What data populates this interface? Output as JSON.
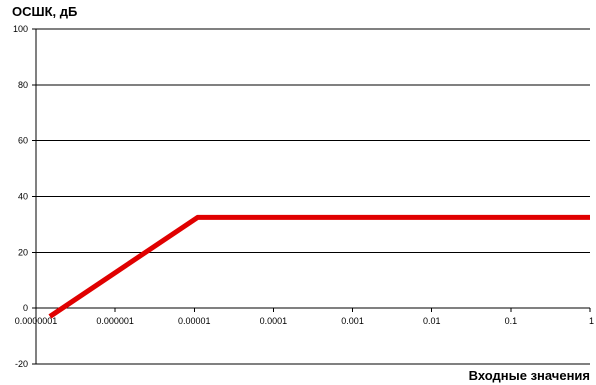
{
  "chart_data": {
    "type": "line",
    "ylabel": "ОСШК, дБ",
    "xlabel": "Входные значения",
    "x_scale": "log",
    "xlim": [
      1e-07,
      1
    ],
    "ylim": [
      -20,
      100
    ],
    "y_ticks": [
      -20,
      0,
      20,
      40,
      60,
      80,
      100
    ],
    "y_tick_labels": [
      "-20",
      "0",
      "20",
      "40",
      "60",
      "80",
      "100"
    ],
    "x_ticks": [
      1e-07,
      1e-06,
      1e-05,
      0.0001,
      0.001,
      0.01,
      0.1,
      1
    ],
    "x_tick_labels": [
      "0.0000001",
      "0.000001",
      "0.00001",
      "0.0001",
      "0.001",
      "0.01",
      "0.1",
      "1"
    ],
    "grid": "horizontal",
    "series": [
      {
        "color": "#e00000",
        "points": [
          {
            "x": 1.5e-07,
            "y": -3
          },
          {
            "x": 1.1e-05,
            "y": 32.5
          },
          {
            "x": 1,
            "y": 32.5
          }
        ]
      }
    ]
  }
}
